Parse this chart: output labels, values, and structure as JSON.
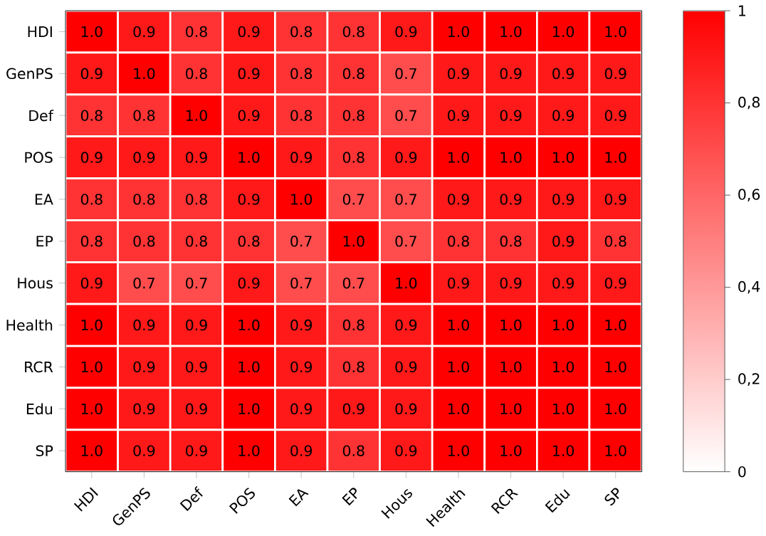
{
  "chart_data": {
    "type": "heatmap",
    "categories": [
      "HDI",
      "GenPS",
      "Def",
      "POS",
      "EA",
      "EP",
      "Hous",
      "Health",
      "RCR",
      "Edu",
      "SP"
    ],
    "y_categories": [
      "HDI",
      "GenPS",
      "Def",
      "POS",
      "EA",
      "EP",
      "Hous",
      "Health",
      "RCR",
      "Edu",
      "SP"
    ],
    "cells": [
      [
        1.0,
        0.9,
        0.8,
        0.9,
        0.8,
        0.8,
        0.9,
        1.0,
        1.0,
        1.0,
        1.0
      ],
      [
        0.9,
        1.0,
        0.8,
        0.9,
        0.8,
        0.8,
        0.7,
        0.9,
        0.9,
        0.9,
        0.9
      ],
      [
        0.8,
        0.8,
        1.0,
        0.9,
        0.8,
        0.8,
        0.7,
        0.9,
        0.9,
        0.9,
        0.9
      ],
      [
        0.9,
        0.9,
        0.9,
        1.0,
        0.9,
        0.8,
        0.9,
        1.0,
        1.0,
        1.0,
        1.0
      ],
      [
        0.8,
        0.8,
        0.8,
        0.9,
        1.0,
        0.7,
        0.7,
        0.9,
        0.9,
        0.9,
        0.9
      ],
      [
        0.8,
        0.8,
        0.8,
        0.8,
        0.7,
        1.0,
        0.7,
        0.8,
        0.8,
        0.9,
        0.8
      ],
      [
        0.9,
        0.7,
        0.7,
        0.9,
        0.7,
        0.7,
        1.0,
        0.9,
        0.9,
        0.9,
        0.9
      ],
      [
        1.0,
        0.9,
        0.9,
        1.0,
        0.9,
        0.8,
        0.9,
        1.0,
        1.0,
        1.0,
        1.0
      ],
      [
        1.0,
        0.9,
        0.9,
        1.0,
        0.9,
        0.8,
        0.9,
        1.0,
        1.0,
        1.0,
        1.0
      ],
      [
        1.0,
        0.9,
        0.9,
        1.0,
        0.9,
        0.9,
        0.9,
        1.0,
        1.0,
        1.0,
        1.0
      ],
      [
        1.0,
        0.9,
        0.9,
        1.0,
        0.9,
        0.8,
        0.9,
        1.0,
        1.0,
        1.0,
        1.0
      ]
    ],
    "cell_labels": [
      [
        "1.0",
        "0.9",
        "0.8",
        "0.9",
        "0.8",
        "0.8",
        "0.9",
        "1.0",
        "1.0",
        "1.0",
        "1.0"
      ],
      [
        "0.9",
        "1.0",
        "0.8",
        "0.9",
        "0.8",
        "0.8",
        "0.7",
        "0.9",
        "0.9",
        "0.9",
        "0.9"
      ],
      [
        "0.8",
        "0.8",
        "1.0",
        "0.9",
        "0.8",
        "0.8",
        "0.7",
        "0.9",
        "0.9",
        "0.9",
        "0.9"
      ],
      [
        "0.9",
        "0.9",
        "0.9",
        "1.0",
        "0.9",
        "0.8",
        "0.9",
        "1.0",
        "1.0",
        "1.0",
        "1.0"
      ],
      [
        "0.8",
        "0.8",
        "0.8",
        "0.9",
        "1.0",
        "0.7",
        "0.7",
        "0.9",
        "0.9",
        "0.9",
        "0.9"
      ],
      [
        "0.8",
        "0.8",
        "0.8",
        "0.8",
        "0.7",
        "1.0",
        "0.7",
        "0.8",
        "0.8",
        "0.9",
        "0.8"
      ],
      [
        "0.9",
        "0.7",
        "0.7",
        "0.9",
        "0.7",
        "0.7",
        "1.0",
        "0.9",
        "0.9",
        "0.9",
        "0.9"
      ],
      [
        "1.0",
        "0.9",
        "0.9",
        "1.0",
        "0.9",
        "0.8",
        "0.9",
        "1.0",
        "1.0",
        "1.0",
        "1.0"
      ],
      [
        "1.0",
        "0.9",
        "0.9",
        "1.0",
        "0.9",
        "0.8",
        "0.9",
        "1.0",
        "1.0",
        "1.0",
        "1.0"
      ],
      [
        "1.0",
        "0.9",
        "0.9",
        "1.0",
        "0.9",
        "0.9",
        "0.9",
        "1.0",
        "1.0",
        "1.0",
        "1.0"
      ],
      [
        "1.0",
        "0.9",
        "0.9",
        "1.0",
        "0.9",
        "0.8",
        "0.9",
        "1.0",
        "1.0",
        "1.0",
        "1.0"
      ]
    ],
    "clim": [
      0,
      1
    ],
    "cticks": [
      0,
      {
        "value": 0.2,
        "label": "0,2"
      },
      {
        "value": 0.4,
        "label": "0,4"
      },
      {
        "value": 0.6,
        "label": "0,6"
      },
      {
        "value": 0.8,
        "label": "0,8"
      },
      1
    ]
  }
}
